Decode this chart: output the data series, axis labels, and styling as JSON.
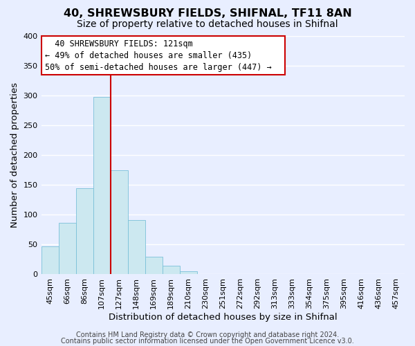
{
  "title": "40, SHREWSBURY FIELDS, SHIFNAL, TF11 8AN",
  "subtitle": "Size of property relative to detached houses in Shifnal",
  "xlabel": "Distribution of detached houses by size in Shifnal",
  "ylabel": "Number of detached properties",
  "footer_line1": "Contains HM Land Registry data © Crown copyright and database right 2024.",
  "footer_line2": "Contains public sector information licensed under the Open Government Licence v3.0.",
  "bin_labels": [
    "45sqm",
    "66sqm",
    "86sqm",
    "107sqm",
    "127sqm",
    "148sqm",
    "169sqm",
    "189sqm",
    "210sqm",
    "230sqm",
    "251sqm",
    "272sqm",
    "292sqm",
    "313sqm",
    "333sqm",
    "354sqm",
    "375sqm",
    "395sqm",
    "416sqm",
    "436sqm",
    "457sqm"
  ],
  "bar_heights": [
    47,
    86,
    144,
    297,
    175,
    91,
    30,
    14,
    5,
    1,
    0,
    0,
    0,
    0,
    0,
    1,
    0,
    0,
    0,
    0,
    1
  ],
  "bar_color": "#cce8f0",
  "bar_edge_color": "#7ac0d8",
  "vline_x_index": 4,
  "vline_color": "#cc0000",
  "ylim": [
    0,
    400
  ],
  "yticks": [
    0,
    50,
    100,
    150,
    200,
    250,
    300,
    350,
    400
  ],
  "annotation_title": "40 SHREWSBURY FIELDS: 121sqm",
  "annotation_line1": "← 49% of detached houses are smaller (435)",
  "annotation_line2": "50% of semi-detached houses are larger (447) →",
  "bg_color": "#e8eeff",
  "plot_bg_color": "#e8eeff",
  "grid_color": "#ffffff",
  "title_fontsize": 11.5,
  "subtitle_fontsize": 10,
  "axis_label_fontsize": 9.5,
  "tick_fontsize": 8,
  "annotation_fontsize": 8.5,
  "footer_fontsize": 7
}
